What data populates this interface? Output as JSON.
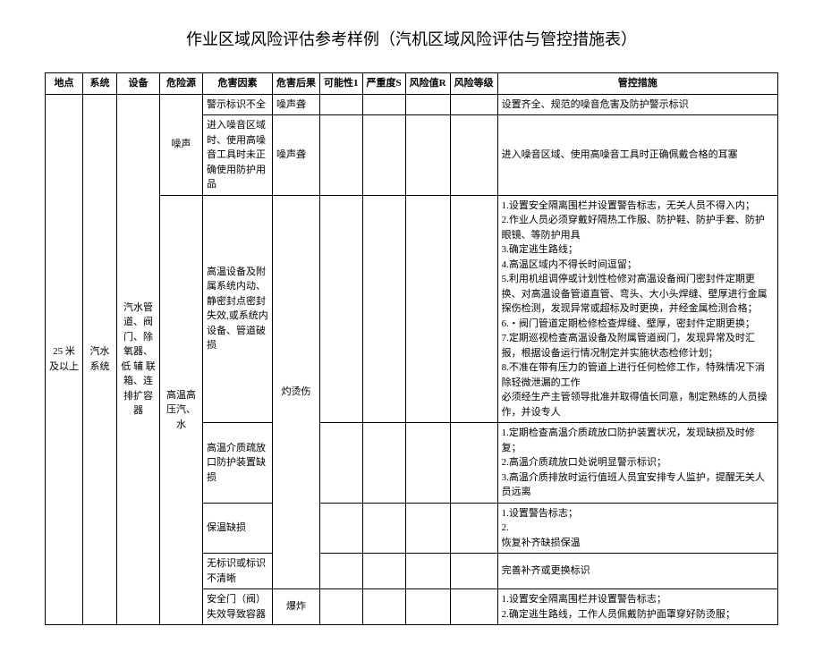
{
  "title": "作业区域风险评估参考样例（汽机区域风险评估与管控措施表）",
  "headers": {
    "location": "地点",
    "system": "系统",
    "equipment": "设备",
    "hazard_source": "危险源",
    "hazard_factor": "危害因素",
    "hazard_result": "危害后果",
    "possibility": "可能性1",
    "severity": "严重度S",
    "risk_value": "风险值R",
    "risk_level": "风险等级",
    "control_measure": "管控措施"
  },
  "content": {
    "location": "25 米及以上",
    "system": "汽水系统",
    "equipment": "汽水管道、阀门、除氧器、低 辅 联箱、连排扩容器",
    "rows": [
      {
        "hazard_source": "噪声",
        "hazard_factor": "警示标识不全",
        "hazard_result": "噪声聋",
        "measure": "设置齐全、规范的噪音危害及防护警示标识"
      },
      {
        "hazard_factor": "进入噪音区域时、使用高噪音工具时未正确使用防护用品",
        "hazard_result": "噪声聋",
        "measure": "进入噪音区域、使用高噪音工具时正确佩戴合格的耳塞"
      },
      {
        "hazard_source": "高温高压汽、水",
        "hazard_factor": "高温设备及附属系统内动、静密封点密封失效,或系统内设备、管道破损",
        "hazard_result": "灼烫伤",
        "measure": "1.设置安全隔离围栏并设置警告标志，无关人员不得入内；\n2.作业人员必须穿戴好隔热工作服、防护鞋、防护手套、防护眼镜、等防护用具\n3.确定逃生路线；\n4.高温区域内不得长时间逗留；\n5.利用机组调停或计划性检修对高温设备阀门密封件定期更换、对高温设备管道直管、弯头、大小头焊缝、壁厚进行金属探伤检测，发现异常或超标及时更换，并经金属检测合格；\n6.・阀门管道定期检修检查焊缝、壁厚，密封件定期更换；\n7.定期巡视检查高温设备及附属管道阀门，发现异常及时汇报，根据设备运行情况制定并实施状态检修计划；\n8.不准在带有压力的管道上进行任何检修工作，特殊情况下消除轻微泄漏的工作\n必须经生产主管领导批准并取得值长同意，制定熟练的人员操作，并设专人"
      },
      {
        "hazard_factor": "高温介质疏放口防护装置缺损",
        "measure": "1.定期检查高温介质疏放口防护装置状况，发现缺损及时修复；\n2.高温介质疏放口处说明显警示标识；\n3.高温介质排放时运行值班人员宜安排专人监护，提醒无关人员远离"
      },
      {
        "hazard_factor": "保温缺损",
        "measure": "1.设置警告标志；\n2.\n恢复补齐缺损保温"
      },
      {
        "hazard_factor": "无标识或标识不清晰",
        "measure": "完善补齐或更换标识"
      },
      {
        "hazard_factor": "安全门（阀）失效导致容器",
        "hazard_result": "爆炸",
        "measure": "1.设置安全隔离围栏并设置警告标志；\n2.确定逃生路线，工作人员佩戴防护面罩穿好防烫服；"
      }
    ]
  },
  "style": {
    "bg": "#ffffff",
    "border": "#000000",
    "font_size_title": 18,
    "font_size_body": 11
  }
}
